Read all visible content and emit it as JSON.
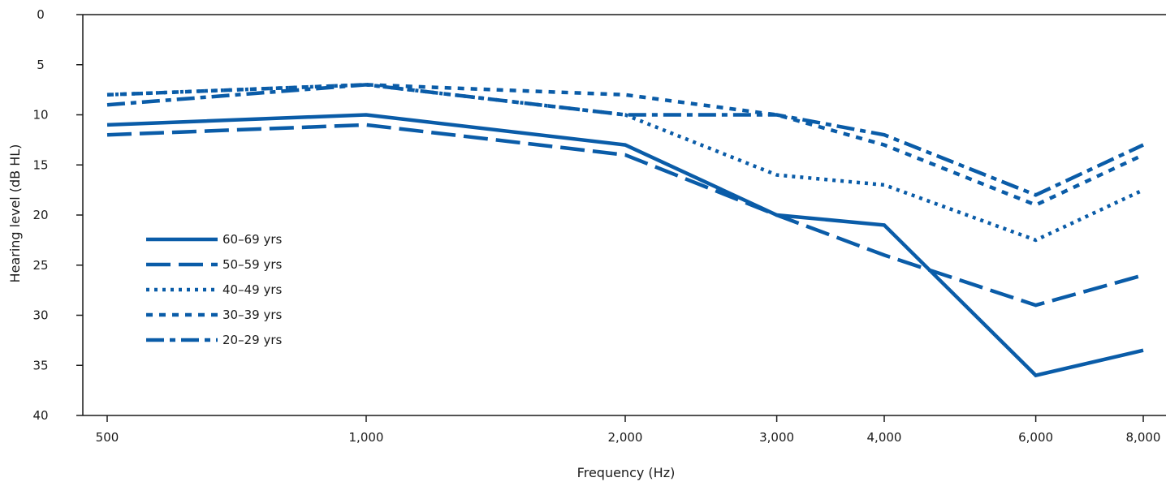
{
  "chart_data": {
    "type": "line",
    "xlabel": "Frequency (Hz)",
    "ylabel": "Hearing level (dB HL)",
    "x_scale": "log",
    "y_inverted": true,
    "ylim": [
      0,
      40
    ],
    "y_ticks": [
      0,
      5,
      10,
      15,
      20,
      25,
      30,
      35,
      40
    ],
    "x": [
      500,
      1000,
      2000,
      3000,
      4000,
      6000,
      8000
    ],
    "x_tick_labels": [
      "500",
      "1,000",
      "2,000",
      "3,000",
      "4,000",
      "6,000",
      "8,000"
    ],
    "legend_position": "lower-left",
    "line_color": "#0a5ca8",
    "series": [
      {
        "name": "60–69 yrs",
        "style": "solid",
        "values": [
          11,
          10,
          13,
          20,
          21,
          36,
          33.5
        ]
      },
      {
        "name": "50–59 yrs",
        "style": "dashed",
        "values": [
          12,
          11,
          14,
          20,
          24,
          29,
          26
        ]
      },
      {
        "name": "40–49 yrs",
        "style": "dotted",
        "values": [
          8,
          7,
          10,
          16,
          17,
          22.5,
          17.5
        ]
      },
      {
        "name": "30–39 yrs",
        "style": "short-dashed",
        "values": [
          8,
          7,
          8,
          10,
          13,
          19,
          14
        ]
      },
      {
        "name": "20–29 yrs",
        "style": "dash-dot",
        "values": [
          9,
          7,
          10,
          10,
          12,
          18,
          13
        ]
      }
    ]
  }
}
